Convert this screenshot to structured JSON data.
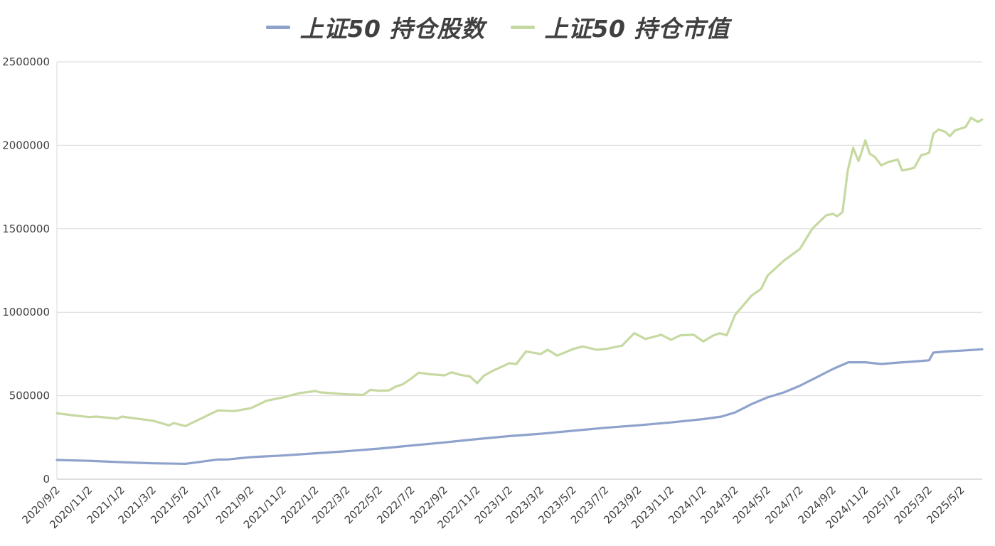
{
  "chart_data": {
    "type": "line",
    "title": "",
    "xlabel": "",
    "ylabel": "",
    "ylim": [
      0,
      2500000
    ],
    "yticks": [
      0,
      500000,
      1000000,
      1500000,
      2000000,
      2500000
    ],
    "ytick_labels": [
      "0",
      "500000",
      "1000000",
      "1500000",
      "2000000",
      "2500000"
    ],
    "grid": "horizontal",
    "legend_position": "top",
    "xtick_labels": [
      "2020/9/2",
      "2020/11/2",
      "2021/1/2",
      "2021/3/2",
      "2021/5/2",
      "2021/7/2",
      "2021/9/2",
      "2021/11/2",
      "2022/1/2",
      "2022/3/2",
      "2022/5/2",
      "2022/7/2",
      "2022/9/2",
      "2022/11/2",
      "2023/1/2",
      "2023/3/2",
      "2023/5/2",
      "2023/7/2",
      "2023/9/2",
      "2023/11/2",
      "2024/1/2",
      "2024/3/2",
      "2024/5/2",
      "2024/7/2",
      "2024/9/2",
      "2024/11/2",
      "2025/1/2",
      "2025/3/2",
      "2025/5/2"
    ],
    "x_range": [
      "2020/9/2",
      "2025/6/10"
    ],
    "series": [
      {
        "name": "上证50 持仓股数",
        "color": "#8EA2CC",
        "points": [
          [
            "2020/9/2",
            115000
          ],
          [
            "2020/11/2",
            110000
          ],
          [
            "2021/1/2",
            102000
          ],
          [
            "2021/3/2",
            95000
          ],
          [
            "2021/4/15",
            93000
          ],
          [
            "2021/5/2",
            92000
          ],
          [
            "2021/7/2",
            118000
          ],
          [
            "2021/7/20",
            118000
          ],
          [
            "2021/9/2",
            132000
          ],
          [
            "2021/11/2",
            142000
          ],
          [
            "2022/1/2",
            155000
          ],
          [
            "2022/3/2",
            168000
          ],
          [
            "2022/5/2",
            183000
          ],
          [
            "2022/7/2",
            202000
          ],
          [
            "2022/9/2",
            220000
          ],
          [
            "2022/11/2",
            240000
          ],
          [
            "2023/1/2",
            258000
          ],
          [
            "2023/3/2",
            272000
          ],
          [
            "2023/5/2",
            290000
          ],
          [
            "2023/7/2",
            308000
          ],
          [
            "2023/9/2",
            323000
          ],
          [
            "2023/11/2",
            340000
          ],
          [
            "2024/1/2",
            360000
          ],
          [
            "2024/2/5",
            375000
          ],
          [
            "2024/3/2",
            400000
          ],
          [
            "2024/4/2",
            450000
          ],
          [
            "2024/5/2",
            490000
          ],
          [
            "2024/6/2",
            520000
          ],
          [
            "2024/7/2",
            560000
          ],
          [
            "2024/8/2",
            610000
          ],
          [
            "2024/9/2",
            660000
          ],
          [
            "2024/10/1",
            700000
          ],
          [
            "2024/11/2",
            700000
          ],
          [
            "2024/12/2",
            690000
          ],
          [
            "2025/1/2",
            698000
          ],
          [
            "2025/2/2",
            705000
          ],
          [
            "2025/3/2",
            712000
          ],
          [
            "2025/3/10",
            758000
          ],
          [
            "2025/4/2",
            765000
          ],
          [
            "2025/5/2",
            770000
          ],
          [
            "2025/6/10",
            778000
          ]
        ]
      },
      {
        "name": "上证50 持仓市值",
        "color": "#C6D9A1",
        "points": [
          [
            "2020/9/2",
            395000
          ],
          [
            "2020/10/2",
            383000
          ],
          [
            "2020/11/2",
            372000
          ],
          [
            "2020/11/15",
            375000
          ],
          [
            "2020/12/15",
            366000
          ],
          [
            "2020/12/25",
            362000
          ],
          [
            "2021/1/2",
            375000
          ],
          [
            "2021/3/2",
            350000
          ],
          [
            "2021/4/1",
            322000
          ],
          [
            "2021/4/10",
            336000
          ],
          [
            "2021/5/2",
            318000
          ],
          [
            "2021/7/2",
            412000
          ],
          [
            "2021/8/2",
            408000
          ],
          [
            "2021/9/2",
            425000
          ],
          [
            "2021/10/2",
            470000
          ],
          [
            "2021/11/2",
            490000
          ],
          [
            "2021/12/2",
            515000
          ],
          [
            "2022/1/2",
            528000
          ],
          [
            "2022/1/10",
            520000
          ],
          [
            "2022/2/2",
            515000
          ],
          [
            "2022/3/2",
            508000
          ],
          [
            "2022/4/2",
            505000
          ],
          [
            "2022/4/15",
            535000
          ],
          [
            "2022/5/2",
            530000
          ],
          [
            "2022/5/20",
            532000
          ],
          [
            "2022/6/2",
            555000
          ],
          [
            "2022/6/15",
            568000
          ],
          [
            "2022/7/2",
            605000
          ],
          [
            "2022/7/15",
            638000
          ],
          [
            "2022/8/2",
            630000
          ],
          [
            "2022/9/2",
            622000
          ],
          [
            "2022/9/15",
            640000
          ],
          [
            "2022/10/2",
            625000
          ],
          [
            "2022/10/20",
            615000
          ],
          [
            "2022/11/2",
            575000
          ],
          [
            "2022/11/15",
            620000
          ],
          [
            "2022/12/2",
            650000
          ],
          [
            "2023/1/2",
            695000
          ],
          [
            "2023/1/15",
            690000
          ],
          [
            "2023/2/2",
            765000
          ],
          [
            "2023/3/2",
            750000
          ],
          [
            "2023/3/15",
            775000
          ],
          [
            "2023/4/2",
            740000
          ],
          [
            "2023/5/2",
            780000
          ],
          [
            "2023/5/20",
            795000
          ],
          [
            "2023/6/15",
            775000
          ],
          [
            "2023/7/2",
            780000
          ],
          [
            "2023/8/2",
            800000
          ],
          [
            "2023/8/25",
            875000
          ],
          [
            "2023/9/15",
            840000
          ],
          [
            "2023/10/15",
            865000
          ],
          [
            "2023/11/2",
            835000
          ],
          [
            "2023/11/20",
            862000
          ],
          [
            "2023/12/15",
            865000
          ],
          [
            "2024/1/2",
            825000
          ],
          [
            "2024/1/20",
            860000
          ],
          [
            "2024/2/2",
            875000
          ],
          [
            "2024/2/15",
            862000
          ],
          [
            "2024/3/2",
            985000
          ],
          [
            "2024/4/2",
            1100000
          ],
          [
            "2024/4/20",
            1140000
          ],
          [
            "2024/5/2",
            1220000
          ],
          [
            "2024/6/2",
            1310000
          ],
          [
            "2024/7/2",
            1380000
          ],
          [
            "2024/7/25",
            1500000
          ],
          [
            "2024/8/20",
            1580000
          ],
          [
            "2024/9/2",
            1590000
          ],
          [
            "2024/9/10",
            1575000
          ],
          [
            "2024/9/20",
            1600000
          ],
          [
            "2024/9/30",
            1850000
          ],
          [
            "2024/10/10",
            1985000
          ],
          [
            "2024/10/20",
            1905000
          ],
          [
            "2024/10/25",
            1950000
          ],
          [
            "2024/11/2",
            2030000
          ],
          [
            "2024/11/10",
            1950000
          ],
          [
            "2024/11/20",
            1930000
          ],
          [
            "2024/12/2",
            1880000
          ],
          [
            "2024/12/15",
            1900000
          ],
          [
            "2025/1/2",
            1915000
          ],
          [
            "2025/1/10",
            1850000
          ],
          [
            "2025/1/20",
            1855000
          ],
          [
            "2025/2/2",
            1865000
          ],
          [
            "2025/2/15",
            1940000
          ],
          [
            "2025/3/2",
            1955000
          ],
          [
            "2025/3/10",
            2070000
          ],
          [
            "2025/3/20",
            2095000
          ],
          [
            "2025/4/2",
            2080000
          ],
          [
            "2025/4/10",
            2055000
          ],
          [
            "2025/4/20",
            2090000
          ],
          [
            "2025/5/10",
            2110000
          ],
          [
            "2025/5/20",
            2165000
          ],
          [
            "2025/6/2",
            2140000
          ],
          [
            "2025/6/10",
            2155000
          ]
        ]
      }
    ]
  }
}
